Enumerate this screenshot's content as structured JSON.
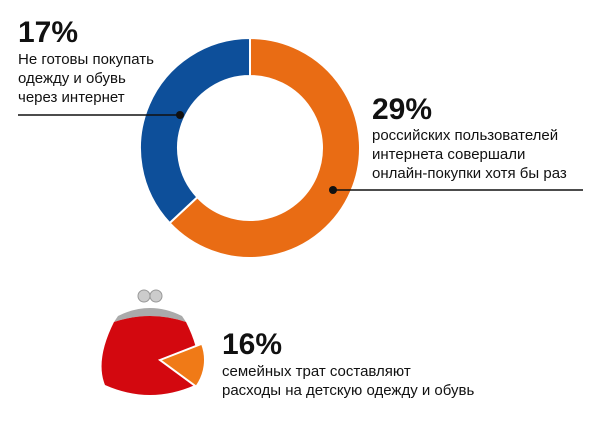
{
  "chart_data": {
    "type": "donut",
    "categories": [
      "российских пользователей\nинтернета совершали\nонлайн-покупки хотя бы раз",
      "Не готовы покупать\nодежду и обувь\nчерез интернет"
    ],
    "values": [
      29,
      17
    ],
    "value_labels": [
      "29%",
      "17%"
    ],
    "colors": [
      "#e96c14",
      "#0d4f9a"
    ]
  },
  "callout": {
    "value": 16,
    "value_label": "16%",
    "text": "семейных трат составляют\nрасходы на детскую одежду и обувь",
    "color": "#f07a17"
  }
}
